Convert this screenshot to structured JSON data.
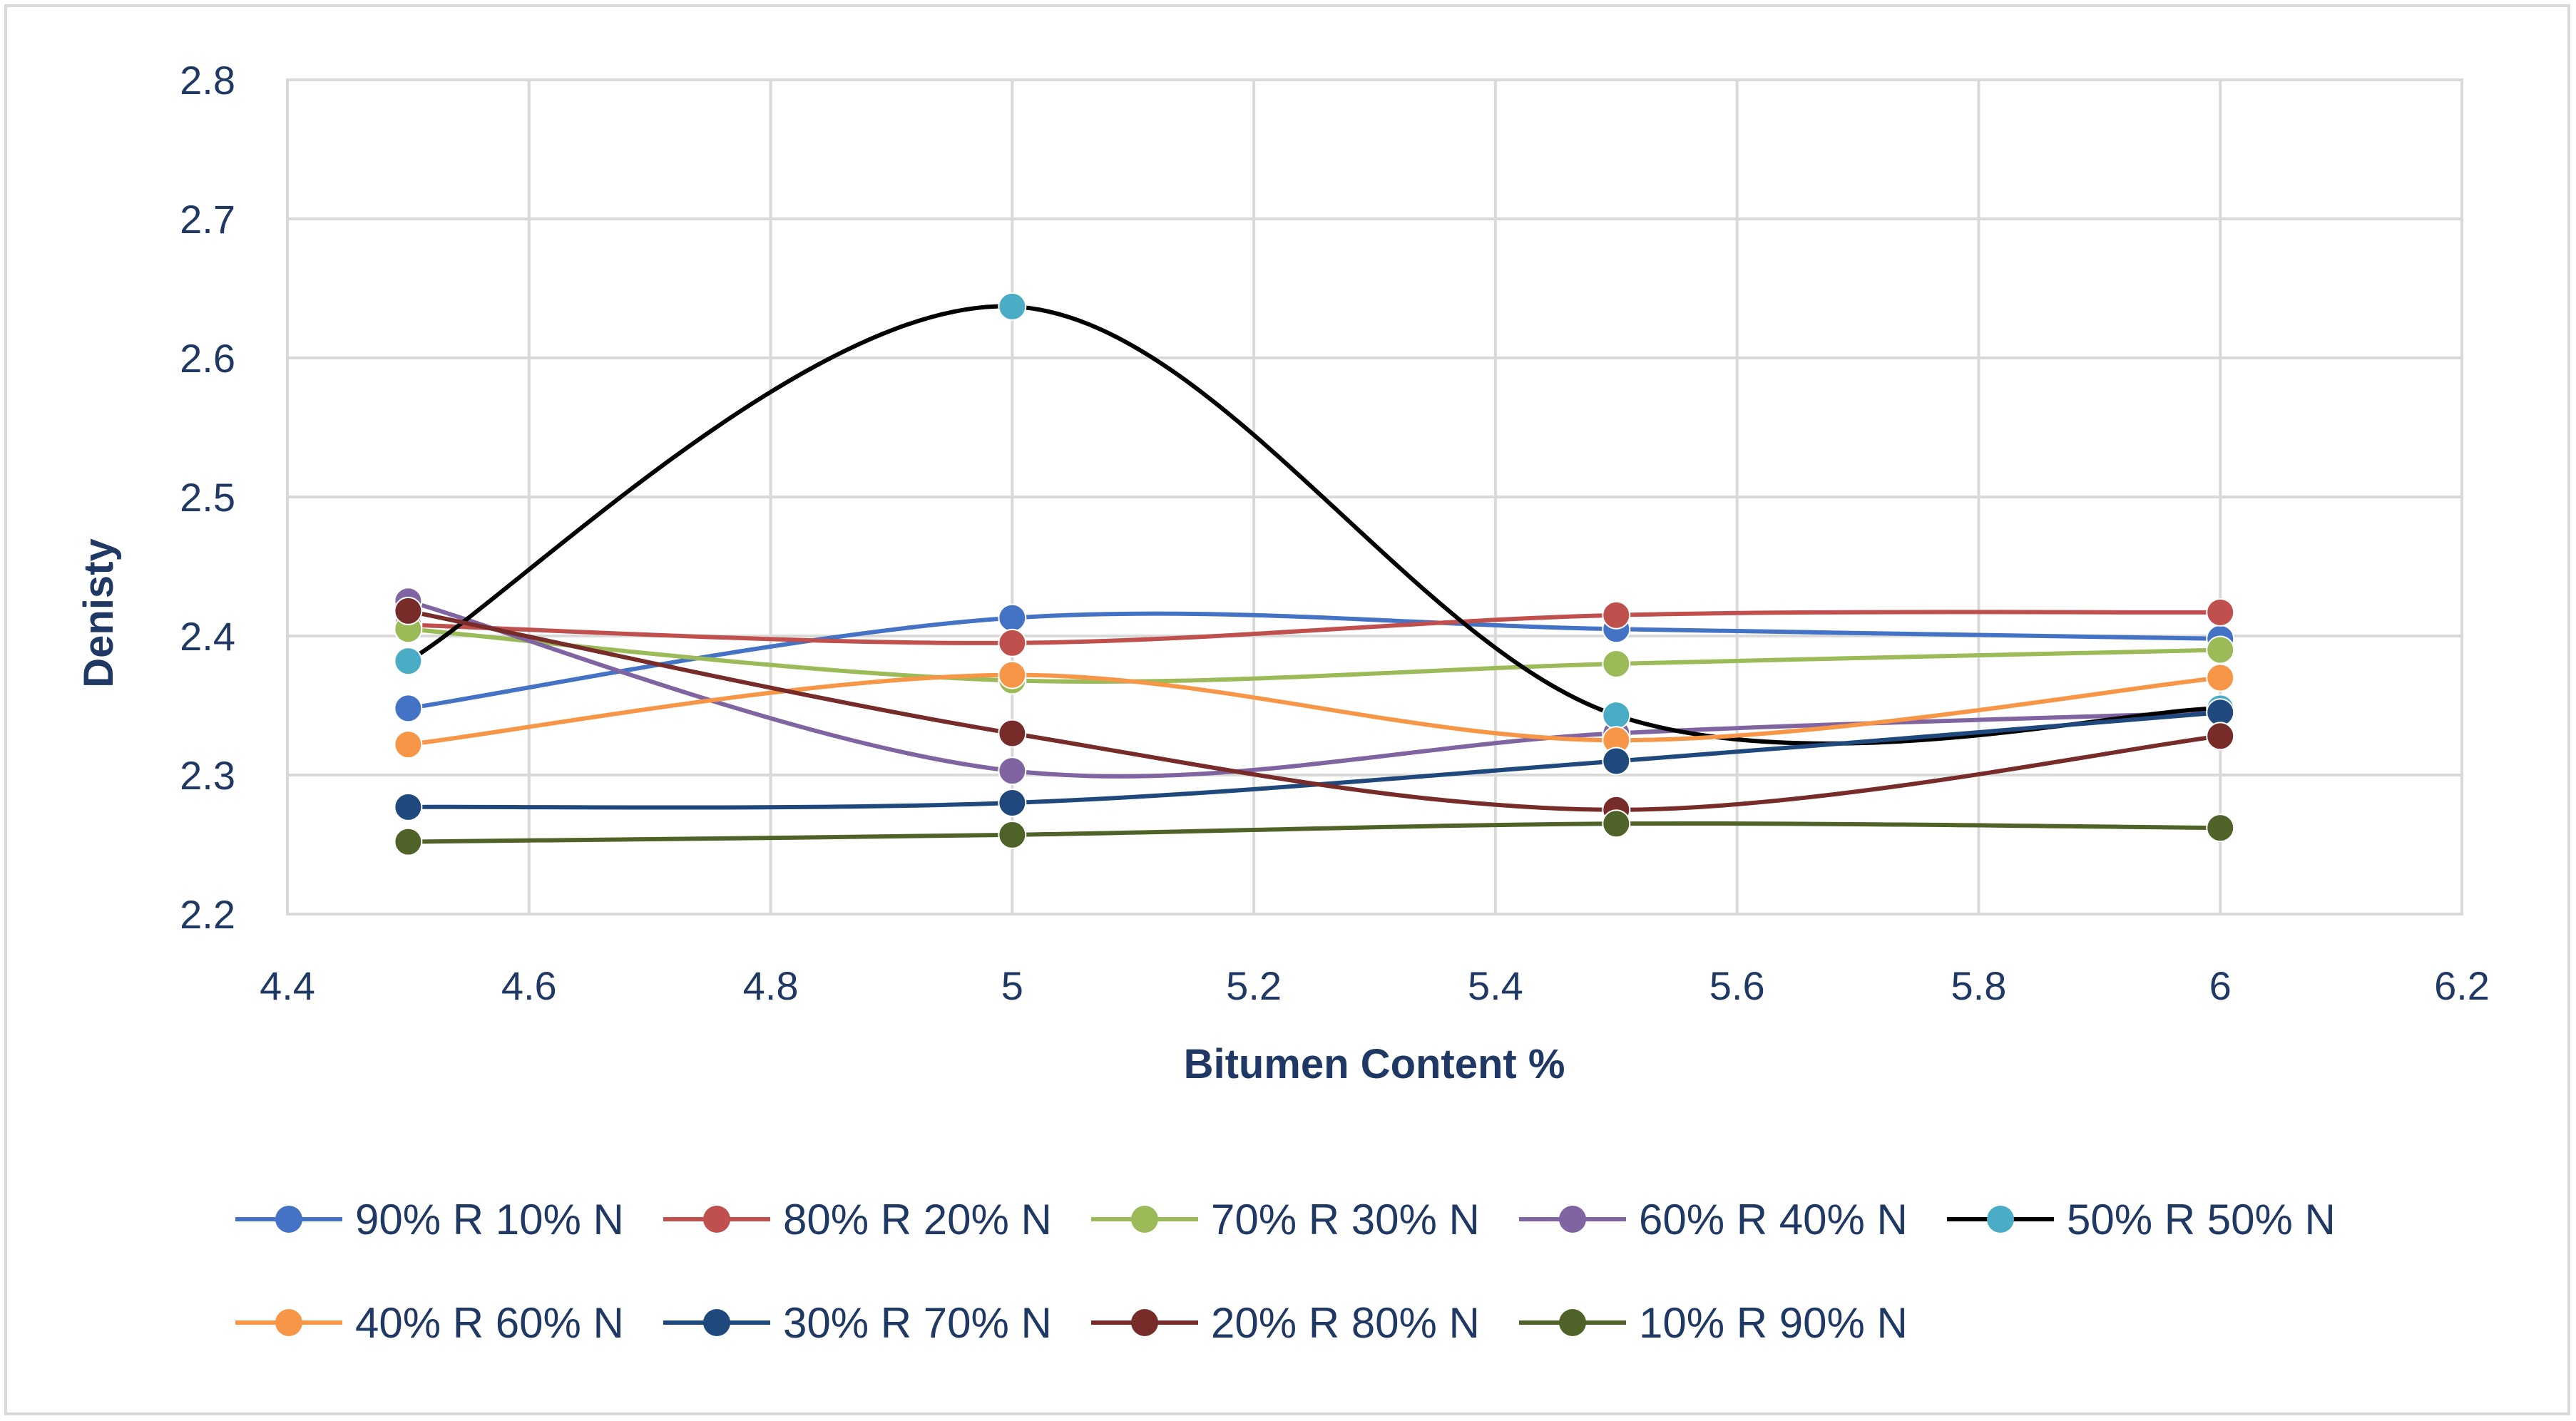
{
  "chart_data": {
    "type": "line",
    "title": "",
    "xlabel": "Bitumen Content %",
    "ylabel": "Denisty",
    "xlim": [
      4.4,
      6.2
    ],
    "ylim": [
      2.2,
      2.8
    ],
    "x_ticks": [
      "4.4",
      "4.6",
      "4.8",
      "5",
      "5.2",
      "5.4",
      "5.6",
      "5.8",
      "6",
      "6.2"
    ],
    "y_ticks": [
      "2.2",
      "2.3",
      "2.4",
      "2.5",
      "2.6",
      "2.7",
      "2.8"
    ],
    "grid": true,
    "smooth": true,
    "legend_position": "bottom",
    "x": [
      4.5,
      5,
      5.5,
      6
    ],
    "series": [
      {
        "name": "90% R 10% N",
        "line_color": "#4472c4",
        "marker_color": "#4472c4",
        "values": [
          2.348,
          2.413,
          2.405,
          2.398
        ]
      },
      {
        "name": "80% R 20% N",
        "line_color": "#c0504d",
        "marker_color": "#c0504d",
        "values": [
          2.408,
          2.395,
          2.415,
          2.417
        ]
      },
      {
        "name": "70% R 30% N",
        "line_color": "#9bbb59",
        "marker_color": "#9bbb59",
        "values": [
          2.405,
          2.368,
          2.38,
          2.39
        ]
      },
      {
        "name": "60% R 40% N",
        "line_color": "#8064a2",
        "marker_color": "#8064a2",
        "values": [
          2.425,
          2.303,
          2.33,
          2.345
        ]
      },
      {
        "name": "50% R 50% N",
        "line_color": "#000000",
        "marker_color": "#4bacc6",
        "values": [
          2.382,
          2.637,
          2.343,
          2.348
        ]
      },
      {
        "name": "40% R 60% N",
        "line_color": "#f79646",
        "marker_color": "#f79646",
        "values": [
          2.322,
          2.372,
          2.325,
          2.37
        ]
      },
      {
        "name": "30% R 70% N",
        "line_color": "#1f497d",
        "marker_color": "#1f497d",
        "values": [
          2.277,
          2.28,
          2.31,
          2.345
        ]
      },
      {
        "name": "20% R 80% N",
        "line_color": "#772c2a",
        "marker_color": "#772c2a",
        "values": [
          2.418,
          2.33,
          2.275,
          2.328
        ]
      },
      {
        "name": "10% R 90% N",
        "line_color": "#4f6228",
        "marker_color": "#4f6228",
        "values": [
          2.252,
          2.257,
          2.265,
          2.262
        ]
      }
    ]
  }
}
